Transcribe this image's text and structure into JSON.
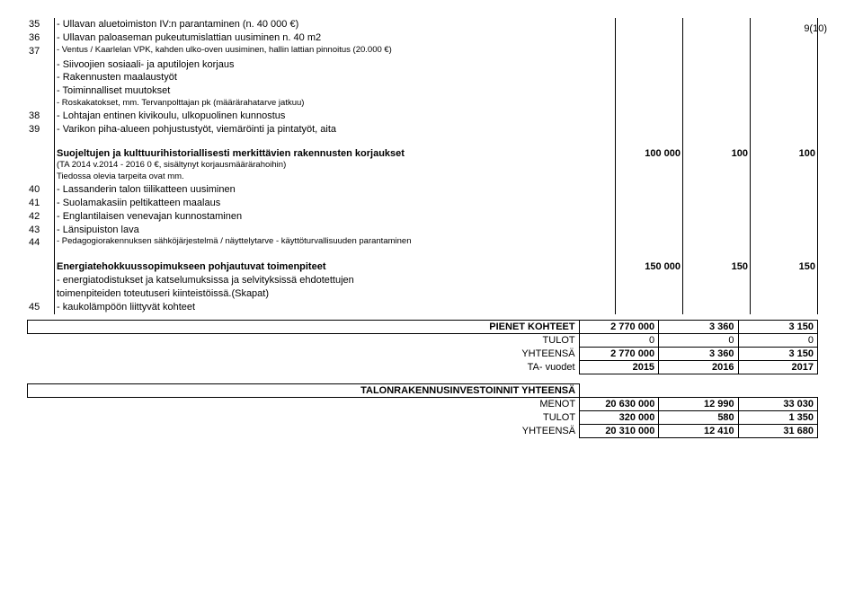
{
  "page_number": "9(10)",
  "rows": [
    {
      "num": "35",
      "text": "- Ullavan aluetoimiston IV:n parantaminen (n. 40 000 €)"
    },
    {
      "num": "36",
      "text": "- Ullavan paloaseman pukeutumislattian uusiminen n. 40 m2"
    },
    {
      "num": "37",
      "text": "- Ventus / Kaarlelan VPK, kahden ulko-oven uusiminen, hallin lattian pinnoitus (20.000 €)",
      "small": true
    },
    {
      "num": "",
      "text": "- Siivoojien sosiaali- ja aputilojen korjaus"
    },
    {
      "num": "",
      "text": "- Rakennusten maalaustyöt"
    },
    {
      "num": "",
      "text": "- Toiminnalliset muutokset"
    },
    {
      "num": "",
      "text": "- Roskakatokset, mm. Tervanpolttajan pk (määrärahatarve jatkuu)",
      "small": true
    },
    {
      "num": "38",
      "text": "- Lohtajan entinen kivikoulu, ulkopuolinen kunnostus"
    },
    {
      "num": "39",
      "text": "- Varikon piha-alueen pohjustustyöt, viemäröinti ja pintatyöt, aita"
    }
  ],
  "section2": {
    "title": "Suojeltujen ja kulttuurihistoriallisesti merkittävien rakennusten korjaukset",
    "sub1": "(TA 2014 v.2014 - 2016 0 €, sisältynyt korjausmäärärahoihin)",
    "sub2": "Tiedossa olevia tarpeita ovat mm.",
    "vals": [
      "100 000",
      "100",
      "100"
    ],
    "items": [
      {
        "num": "40",
        "text": "- Lassanderin talon tiilikatteen uusiminen"
      },
      {
        "num": "41",
        "text": "- Suolamakasiin peltikatteen maalaus"
      },
      {
        "num": "42",
        "text": "- Englantilaisen venevajan kunnostaminen"
      },
      {
        "num": "43",
        "text": "- Länsipuiston lava"
      },
      {
        "num": "44",
        "text": "- Pedagogiorakennuksen sähköjärjestelmä / näyttelytarve - käyttöturvallisuuden parantaminen",
        "small": true
      }
    ]
  },
  "section3": {
    "title": "Energiatehokkuussopimukseen pohjautuvat toimenpiteet",
    "line1": "- energiatodistukset ja katselumuksissa ja selvityksissä ehdotettujen",
    "line2": "  toimenpiteiden toteutuseri kiinteistöissä.(Skapat)",
    "item": {
      "num": "45",
      "text": "- kaukolämpöön liittyvät kohteet"
    },
    "vals": [
      "150 000",
      "150",
      "150"
    ]
  },
  "totals1": {
    "header": "PIENET KOHTEET",
    "rows": [
      {
        "label": "",
        "v": [
          "2 770 000",
          "3 360",
          "3 150"
        ]
      },
      {
        "label": "TULOT",
        "v": [
          "0",
          "0",
          "0"
        ]
      },
      {
        "label": "YHTEENSÄ",
        "v": [
          "2 770 000",
          "3 360",
          "3 150"
        ]
      },
      {
        "label": "TA- vuodet",
        "v": [
          "2015",
          "2016",
          "2017"
        ]
      }
    ]
  },
  "totals2": {
    "header": "TALONRAKENNUSINVESTOINNIT YHTEENSÄ",
    "rows": [
      {
        "label": "MENOT",
        "v": [
          "20 630 000",
          "12 990",
          "33 030"
        ]
      },
      {
        "label": "TULOT",
        "v": [
          "320 000",
          "580",
          "1 350"
        ]
      },
      {
        "label": "YHTEENSÄ",
        "v": [
          "20 310 000",
          "12 410",
          "31 680"
        ]
      }
    ]
  }
}
